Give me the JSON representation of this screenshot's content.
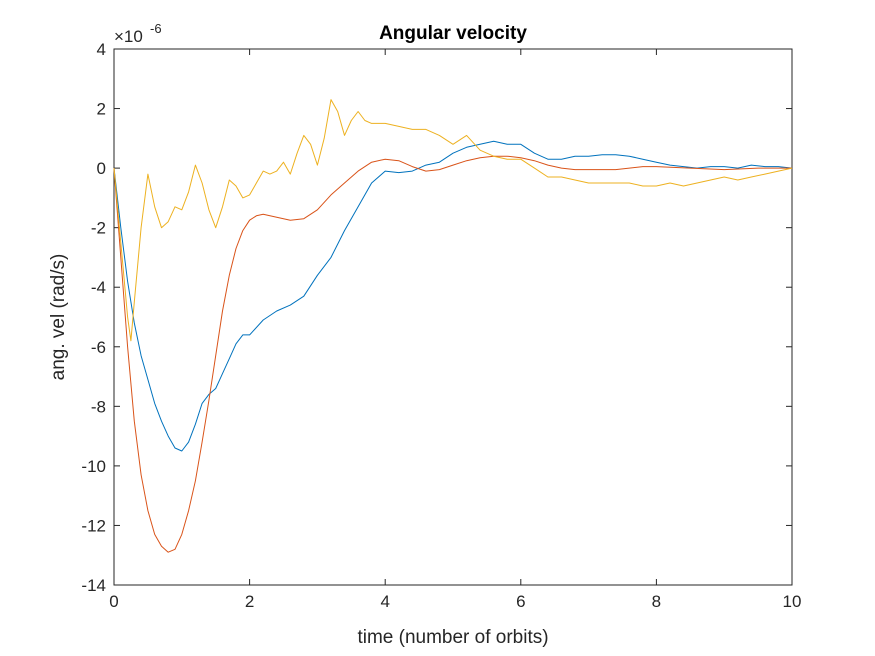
{
  "chart_data": {
    "type": "line",
    "title": "Angular velocity",
    "xlabel": "time (number of orbits)",
    "ylabel": "ang. vel (rad/s)",
    "y_exponent_label": "×10",
    "y_exponent_power": "-6",
    "xlim": [
      0,
      10
    ],
    "ylim": [
      -14,
      4
    ],
    "x_ticks": [
      0,
      2,
      4,
      6,
      8,
      10
    ],
    "x_tick_labels": [
      "0",
      "2",
      "4",
      "6",
      "8",
      "10"
    ],
    "y_ticks": [
      4,
      2,
      0,
      -2,
      -4,
      -6,
      -8,
      -10,
      -12,
      -14
    ],
    "y_tick_labels": [
      "4",
      "2",
      "0",
      "-2",
      "-4",
      "-6",
      "-8",
      "-10",
      "-12",
      "-14"
    ],
    "grid": false,
    "series": [
      {
        "color": "#0072BD",
        "x": [
          0,
          0.1,
          0.2,
          0.3,
          0.4,
          0.5,
          0.6,
          0.7,
          0.8,
          0.9,
          1.0,
          1.1,
          1.2,
          1.3,
          1.4,
          1.5,
          1.6,
          1.7,
          1.8,
          1.9,
          2.0,
          2.2,
          2.4,
          2.6,
          2.8,
          3.0,
          3.2,
          3.4,
          3.6,
          3.8,
          4.0,
          4.2,
          4.4,
          4.6,
          4.8,
          5.0,
          5.2,
          5.4,
          5.6,
          5.8,
          6.0,
          6.2,
          6.4,
          6.6,
          6.8,
          7.0,
          7.2,
          7.4,
          7.6,
          7.8,
          8.0,
          8.2,
          8.4,
          8.6,
          8.8,
          9.0,
          9.2,
          9.4,
          9.6,
          9.8,
          10.0
        ],
        "y": [
          0,
          -2.0,
          -3.8,
          -5.2,
          -6.3,
          -7.1,
          -7.9,
          -8.5,
          -9.0,
          -9.4,
          -9.5,
          -9.2,
          -8.6,
          -7.9,
          -7.6,
          -7.4,
          -6.9,
          -6.4,
          -5.9,
          -5.6,
          -5.6,
          -5.1,
          -4.8,
          -4.6,
          -4.3,
          -3.6,
          -3.0,
          -2.1,
          -1.3,
          -0.5,
          -0.1,
          -0.15,
          -0.1,
          0.1,
          0.2,
          0.5,
          0.7,
          0.8,
          0.9,
          0.8,
          0.8,
          0.5,
          0.3,
          0.3,
          0.4,
          0.4,
          0.45,
          0.45,
          0.4,
          0.3,
          0.2,
          0.1,
          0.05,
          0.0,
          0.05,
          0.05,
          0.0,
          0.1,
          0.05,
          0.05,
          0.0
        ]
      },
      {
        "color": "#D95319",
        "x": [
          0,
          0.1,
          0.2,
          0.3,
          0.4,
          0.5,
          0.6,
          0.7,
          0.8,
          0.9,
          1.0,
          1.1,
          1.2,
          1.3,
          1.4,
          1.5,
          1.6,
          1.7,
          1.8,
          1.9,
          2.0,
          2.1,
          2.2,
          2.4,
          2.6,
          2.8,
          3.0,
          3.2,
          3.4,
          3.6,
          3.8,
          4.0,
          4.2,
          4.4,
          4.6,
          4.8,
          5.0,
          5.2,
          5.4,
          5.6,
          5.8,
          6.0,
          6.2,
          6.4,
          6.6,
          6.8,
          7.0,
          7.2,
          7.4,
          7.6,
          7.8,
          8.0,
          8.5,
          9.0,
          9.5,
          10.0
        ],
        "y": [
          0,
          -3.0,
          -6.0,
          -8.5,
          -10.3,
          -11.5,
          -12.3,
          -12.7,
          -12.9,
          -12.8,
          -12.3,
          -11.5,
          -10.5,
          -9.2,
          -7.8,
          -6.3,
          -4.8,
          -3.6,
          -2.7,
          -2.1,
          -1.75,
          -1.6,
          -1.55,
          -1.65,
          -1.75,
          -1.7,
          -1.4,
          -0.9,
          -0.5,
          -0.1,
          0.2,
          0.3,
          0.25,
          0.05,
          -0.1,
          -0.05,
          0.1,
          0.25,
          0.35,
          0.4,
          0.4,
          0.35,
          0.25,
          0.1,
          0.0,
          -0.05,
          -0.05,
          -0.05,
          -0.05,
          0.0,
          0.05,
          0.05,
          0.0,
          -0.05,
          0.0,
          0.0
        ]
      },
      {
        "color": "#EDB120",
        "x": [
          0,
          0.1,
          0.2,
          0.25,
          0.3,
          0.4,
          0.5,
          0.6,
          0.7,
          0.8,
          0.9,
          1.0,
          1.1,
          1.2,
          1.3,
          1.4,
          1.5,
          1.6,
          1.7,
          1.8,
          1.9,
          2.0,
          2.1,
          2.2,
          2.3,
          2.4,
          2.5,
          2.6,
          2.7,
          2.8,
          2.9,
          3.0,
          3.1,
          3.2,
          3.3,
          3.4,
          3.5,
          3.6,
          3.7,
          3.8,
          3.9,
          4.0,
          4.2,
          4.4,
          4.6,
          4.8,
          5.0,
          5.2,
          5.4,
          5.6,
          5.8,
          6.0,
          6.2,
          6.4,
          6.6,
          6.8,
          7.0,
          7.2,
          7.4,
          7.6,
          7.8,
          8.0,
          8.2,
          8.4,
          8.6,
          8.8,
          9.0,
          9.2,
          9.4,
          9.6,
          9.8,
          10.0
        ],
        "y": [
          0,
          -2.5,
          -5.0,
          -5.8,
          -4.5,
          -2.0,
          -0.2,
          -1.3,
          -2.0,
          -1.8,
          -1.3,
          -1.4,
          -0.8,
          0.1,
          -0.5,
          -1.4,
          -2.0,
          -1.3,
          -0.4,
          -0.6,
          -1.0,
          -0.9,
          -0.5,
          -0.1,
          -0.2,
          -0.1,
          0.2,
          -0.2,
          0.5,
          1.1,
          0.8,
          0.1,
          1.0,
          2.3,
          1.9,
          1.1,
          1.6,
          1.9,
          1.6,
          1.5,
          1.5,
          1.5,
          1.4,
          1.3,
          1.3,
          1.1,
          0.8,
          1.1,
          0.6,
          0.4,
          0.3,
          0.3,
          0.0,
          -0.3,
          -0.3,
          -0.4,
          -0.5,
          -0.5,
          -0.5,
          -0.5,
          -0.6,
          -0.6,
          -0.5,
          -0.6,
          -0.5,
          -0.4,
          -0.3,
          -0.4,
          -0.3,
          -0.2,
          -0.1,
          0.0
        ]
      }
    ]
  }
}
